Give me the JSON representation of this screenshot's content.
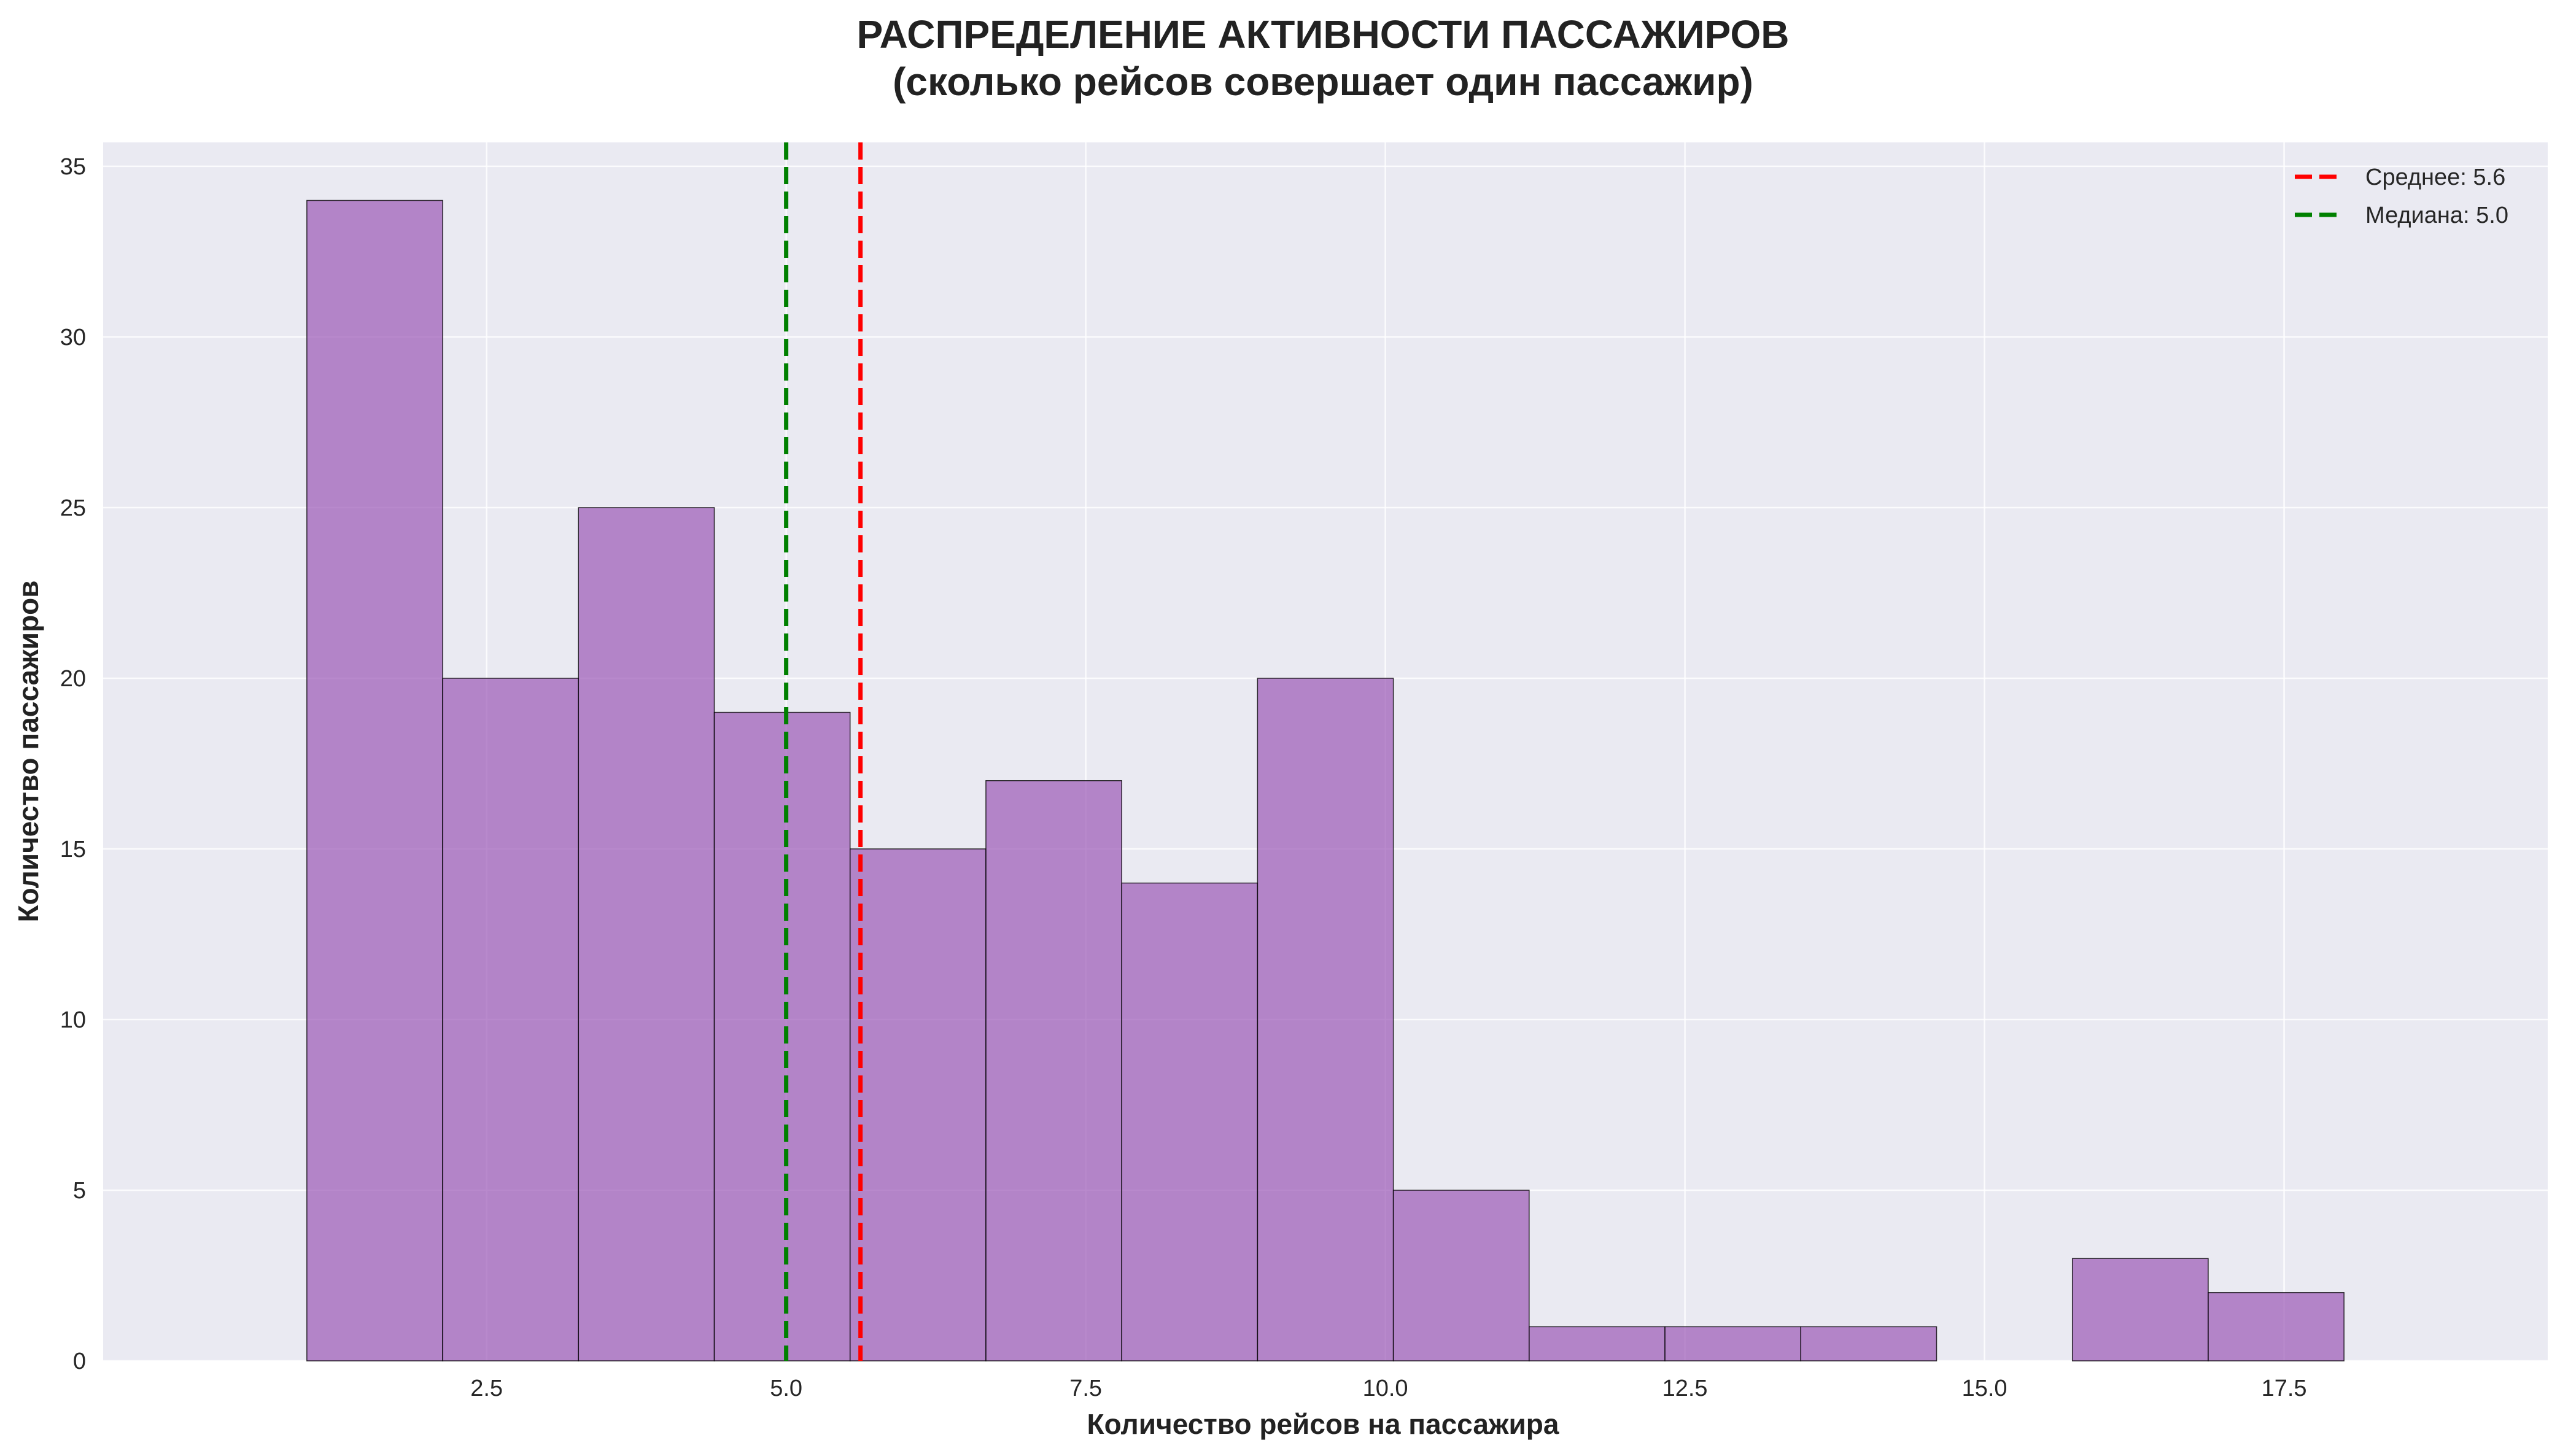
{
  "chart_data": {
    "type": "bar",
    "title": "РАСПРЕДЕЛЕНИЕ АКТИВНОСТИ ПАССАЖИРОВ",
    "subtitle": "(сколько рейсов совершает один пассажир)",
    "xlabel": "Количество рейсов на пассажира",
    "ylabel": "Количество пассажиров",
    "bin_edges": [
      1.0,
      2.1333,
      3.2667,
      4.4,
      5.5333,
      6.6667,
      7.8,
      8.9333,
      10.0667,
      11.2,
      12.3333,
      13.4667,
      14.6,
      15.7333,
      16.8667,
      18.0
    ],
    "values": [
      34,
      20,
      25,
      19,
      15,
      17,
      14,
      20,
      5,
      1,
      1,
      1,
      0,
      3,
      2
    ],
    "xlim": [
      -0.7,
      19.7
    ],
    "ylim": [
      0,
      35.7
    ],
    "xticks": [
      "2.5",
      "5.0",
      "7.5",
      "10.0",
      "12.5",
      "15.0",
      "17.5"
    ],
    "yticks": [
      "0",
      "5",
      "10",
      "15",
      "20",
      "25",
      "30",
      "35"
    ],
    "grid": true,
    "bar_color": "#9b59b6",
    "plot_background": "#eaeaf2",
    "lines": [
      {
        "label": "Среднее: 5.6",
        "x": 5.62,
        "color": "#ff0000"
      },
      {
        "label": "Медиана: 5.0",
        "x": 5.0,
        "color": "#008000"
      }
    ],
    "legend_position": "top-right"
  }
}
